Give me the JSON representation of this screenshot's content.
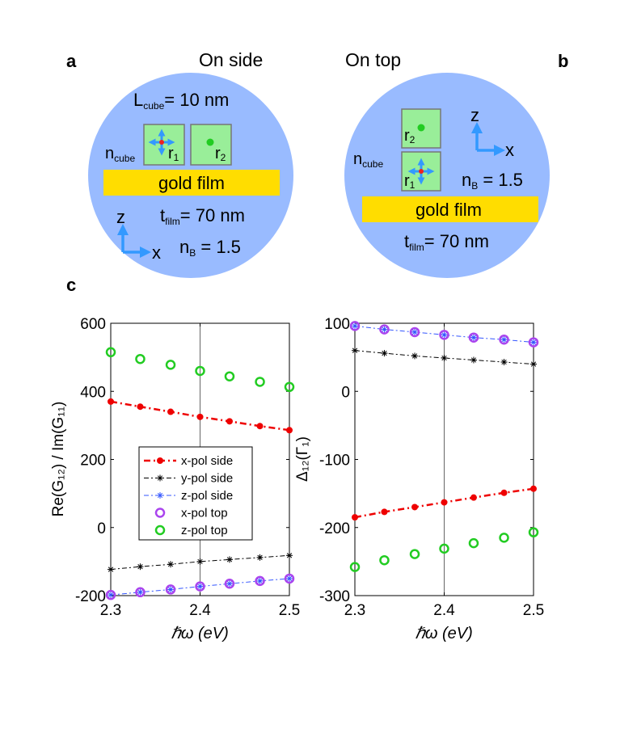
{
  "panel_labels": {
    "a": "a",
    "b": "b",
    "c": "c"
  },
  "diagram_a": {
    "title": "On side",
    "lcube_main": "L",
    "lcube_sub": "cube",
    "lcube_val": "= 10 nm",
    "r1_main": "r",
    "r1_sub": "1",
    "r2_main": "r",
    "r2_sub": "2",
    "ncube_main": "n",
    "ncube_sub": "cube",
    "film": "gold film",
    "tfilm_main": "t",
    "tfilm_sub": "film",
    "tfilm_val": "= 70 nm",
    "nb_main": "n",
    "nb_sub": "B",
    "nb_val": " = 1.5",
    "axis_z": "z",
    "axis_x": "x"
  },
  "diagram_b": {
    "title": "On top",
    "r1_main": "r",
    "r1_sub": "1",
    "r2_main": "r",
    "r2_sub": "2",
    "ncube_main": "n",
    "ncube_sub": "cube",
    "film": "gold film",
    "tfilm_main": "t",
    "tfilm_sub": "film",
    "tfilm_val": "= 70 nm",
    "nb_main": "n",
    "nb_sub": "B",
    "nb_val": " = 1.5",
    "axis_z": "z",
    "axis_x": "x"
  },
  "colors": {
    "circle": "#99bbff",
    "cube": "#99ee99",
    "gold": "#ffdd00",
    "arrow": "#3399ff",
    "x_side": "#ee0000",
    "y_side": "#000000",
    "z_side": "#3355ff",
    "x_top": "#aa44ee",
    "z_top": "#22cc22"
  },
  "chart_data": [
    {
      "type": "line",
      "title": "",
      "xlabel": "ℏω (eV)",
      "ylabel": "Re(G₁₂) / Im(G₁₁)",
      "xlim": [
        2.3,
        2.5
      ],
      "ylim": [
        -200,
        600
      ],
      "xticks": [
        2.3,
        2.4,
        2.5
      ],
      "yticks": [
        -200,
        0,
        200,
        400,
        600
      ],
      "xtick_labels": [
        "2.3",
        "2.4",
        "2.5"
      ],
      "ytick_labels": [
        "-200",
        "0",
        "200",
        "400",
        "600"
      ],
      "vline_x": 2.4,
      "legend_position": "center-left",
      "x": [
        2.3,
        2.333,
        2.367,
        2.4,
        2.433,
        2.467,
        2.5
      ],
      "series": [
        {
          "name": "x-pol side",
          "values": [
            370,
            355,
            340,
            325,
            312,
            298,
            286
          ]
        },
        {
          "name": "y-pol side",
          "values": [
            -123,
            -115,
            -108,
            -100,
            -94,
            -88,
            -82
          ]
        },
        {
          "name": "z-pol side",
          "values": [
            -198,
            -190,
            -182,
            -173,
            -165,
            -157,
            -150
          ]
        },
        {
          "name": "x-pol top",
          "values": [
            -198,
            -190,
            -182,
            -173,
            -165,
            -157,
            -150
          ]
        },
        {
          "name": "z-pol top",
          "values": [
            515,
            495,
            478,
            460,
            444,
            428,
            413
          ]
        }
      ]
    },
    {
      "type": "line",
      "title": "",
      "xlabel": "ℏω (eV)",
      "ylabel": "Δ₁₂(Γ₁)",
      "xlim": [
        2.3,
        2.5
      ],
      "ylim": [
        -300,
        100
      ],
      "xticks": [
        2.3,
        2.4,
        2.5
      ],
      "yticks": [
        -300,
        -200,
        -100,
        0,
        100
      ],
      "xtick_labels": [
        "2.3",
        "2.4",
        "2.5"
      ],
      "ytick_labels": [
        "-300",
        "-200",
        "-100",
        "0",
        "100"
      ],
      "vline_x": 2.4,
      "x": [
        2.3,
        2.333,
        2.367,
        2.4,
        2.433,
        2.467,
        2.5
      ],
      "series": [
        {
          "name": "x-pol side",
          "values": [
            -185,
            -177,
            -170,
            -163,
            -156,
            -149,
            -143
          ]
        },
        {
          "name": "y-pol side",
          "values": [
            60,
            56,
            52,
            49,
            46,
            43,
            40
          ]
        },
        {
          "name": "z-pol side",
          "values": [
            96,
            91,
            87,
            83,
            79,
            76,
            72
          ]
        },
        {
          "name": "x-pol top",
          "values": [
            96,
            91,
            87,
            83,
            79,
            76,
            72
          ]
        },
        {
          "name": "z-pol top",
          "values": [
            -258,
            -248,
            -239,
            -231,
            -223,
            -215,
            -207
          ]
        }
      ]
    }
  ]
}
